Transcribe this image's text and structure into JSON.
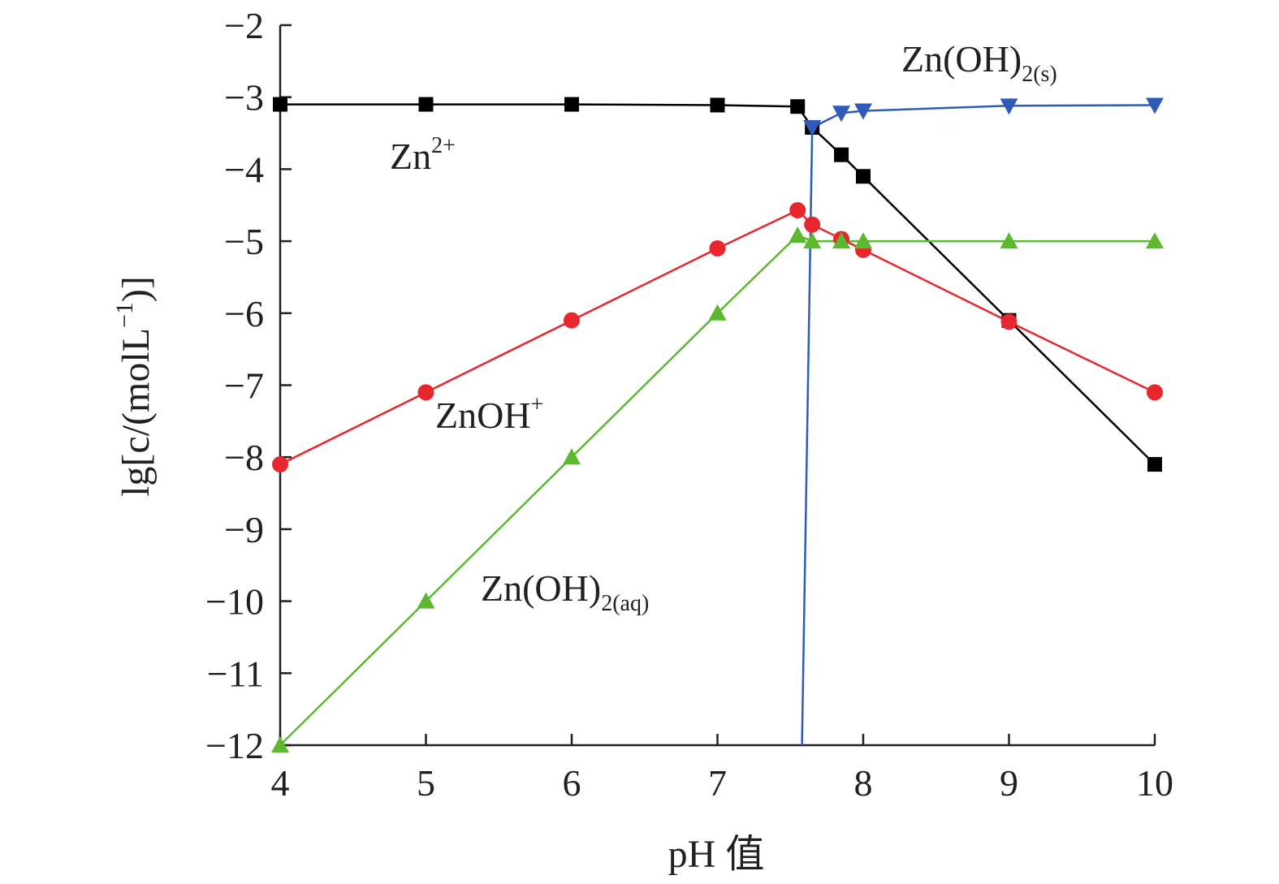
{
  "chart_data": {
    "type": "line",
    "xlabel": "pH 值",
    "ylabel_parts": [
      "lg[c/(molL",
      "−1",
      ")]"
    ],
    "xlim": [
      4,
      10
    ],
    "ylim": [
      -12,
      -2
    ],
    "x_ticks": [
      4,
      5,
      6,
      7,
      8,
      9,
      10
    ],
    "x_tick_labels": [
      "4",
      "5",
      "6",
      "7",
      "8",
      "9",
      "10"
    ],
    "y_ticks": [
      -2,
      -3,
      -4,
      -5,
      -6,
      -7,
      -8,
      -9,
      -10,
      -11,
      -12
    ],
    "y_tick_labels": [
      "−2",
      "−3",
      "−4",
      "−5",
      "−6",
      "−7",
      "−8",
      "−9",
      "−10",
      "−11",
      "−12"
    ],
    "grid": false,
    "series": [
      {
        "key": "zn2",
        "color": "#000000",
        "marker": "square",
        "label_parts": [
          {
            "t": "Zn",
            "s": ""
          },
          {
            "t": "2+",
            "s": "sup"
          }
        ],
        "x": [
          4,
          5,
          6,
          7,
          7.55,
          7.65,
          7.85,
          8,
          9,
          10
        ],
        "y": [
          -3.1,
          -3.1,
          -3.1,
          -3.11,
          -3.13,
          -3.42,
          -3.8,
          -4.1,
          -6.1,
          -8.1
        ]
      },
      {
        "key": "znoh",
        "color": "#e8262d",
        "marker": "circle",
        "label_parts": [
          {
            "t": "ZnOH",
            "s": ""
          },
          {
            "t": "+",
            "s": "sup"
          }
        ],
        "x": [
          4,
          5,
          6,
          7,
          7.55,
          7.65,
          7.85,
          8,
          9,
          10
        ],
        "y": [
          -8.1,
          -7.1,
          -6.1,
          -5.1,
          -4.57,
          -4.77,
          -4.97,
          -5.12,
          -6.12,
          -7.1
        ]
      },
      {
        "key": "znoh2aq",
        "color": "#5cb82e",
        "marker": "triangle-up",
        "label_parts": [
          {
            "t": "Zn(OH)",
            "s": ""
          },
          {
            "t": "2(aq)",
            "s": "sub"
          }
        ],
        "x": [
          4,
          5,
          6,
          7,
          7.55,
          7.65,
          7.85,
          8,
          9,
          10
        ],
        "y": [
          -12,
          -10,
          -8,
          -6,
          -4.92,
          -5.0,
          -5.0,
          -5.0,
          -5.0,
          -5.0
        ]
      },
      {
        "key": "znoh2s",
        "color": "#2e5bb8",
        "marker": "triangle-down",
        "label_parts": [
          {
            "t": "Zn(OH)",
            "s": ""
          },
          {
            "t": "2(s)",
            "s": "sub"
          }
        ],
        "x": [
          7.58,
          7.65,
          7.85,
          8,
          9,
          10
        ],
        "y": [
          -12,
          -3.42,
          -3.22,
          -3.19,
          -3.12,
          -3.11
        ],
        "marker_from_index": 1
      }
    ]
  }
}
